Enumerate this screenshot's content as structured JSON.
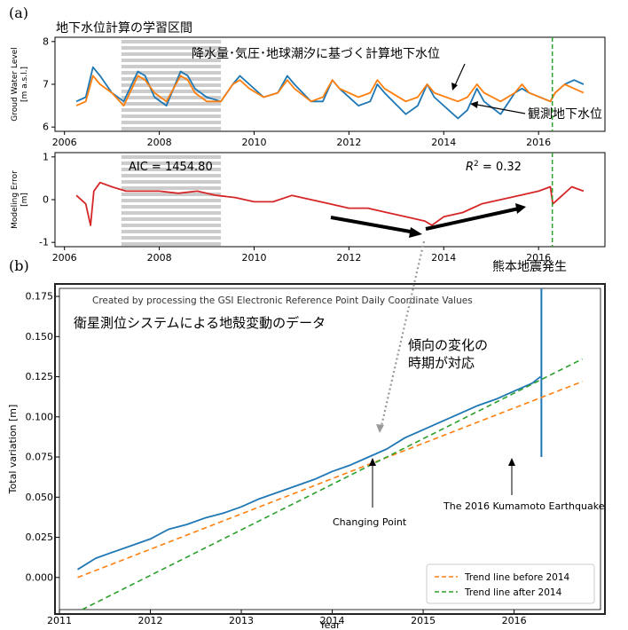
{
  "panel_labels": {
    "a": "(a)",
    "b": "(b)"
  },
  "annotations": {
    "learning_period": "地下水位計算の学習区間",
    "computed_level": "降水量･気圧･地球潮汐に基づく計算地下水位",
    "observed_level": "観測地下水位",
    "earthquake": "熊本地震発生",
    "gnss_data": "衛星測位システムによる地殻変動のデータ",
    "trend_change_1": "傾向の変化の",
    "trend_change_2": "時期が対応",
    "credit": "Created by processing the GSI Electronic Reference Point Daily Coordinate Values",
    "changing_point": "Changing Point",
    "kumamoto": "The 2016 Kumamoto Earthquake",
    "aic": "AIC = 1454.80",
    "r2_prefix": "R",
    "r2_sup": "2",
    "r2_suffix": " = 0.32"
  },
  "colors": {
    "observed": "#1f77b4",
    "computed": "#ff7f0e",
    "error": "#d62728",
    "trend_before": "#ff7f0e",
    "trend_after": "#2ca02c",
    "earthquake_line": "#2ca02c",
    "training_band": "#cccccc"
  },
  "chart_data": [
    {
      "id": "groundwater",
      "type": "line",
      "xlabel": "",
      "ylabel_1": "Groud Water Level",
      "ylabel_2": "[m a.s.l.]",
      "xlim": [
        2005.8,
        2017.4
      ],
      "ylim": [
        5.9,
        8.1
      ],
      "xticks": [
        2006,
        2008,
        2010,
        2012,
        2014,
        2016
      ],
      "yticks": [
        6,
        7,
        8
      ],
      "training_period": [
        2007.2,
        2009.3
      ],
      "earthquake_year": 2016.29,
      "series": [
        {
          "name": "観測地下水位",
          "key": "observed",
          "x": [
            2006.25,
            2006.45,
            2006.6,
            2006.75,
            2007.0,
            2007.25,
            2007.55,
            2007.7,
            2007.9,
            2008.15,
            2008.45,
            2008.6,
            2008.75,
            2009.0,
            2009.3,
            2009.55,
            2009.7,
            2009.9,
            2010.2,
            2010.5,
            2010.7,
            2010.85,
            2011.2,
            2011.45,
            2011.65,
            2011.8,
            2012.2,
            2012.45,
            2012.6,
            2012.75,
            2013.2,
            2013.45,
            2013.65,
            2013.8,
            2014.3,
            2014.5,
            2014.7,
            2014.85,
            2015.2,
            2015.5,
            2015.65,
            2015.8,
            2016.25,
            2016.35,
            2016.55,
            2016.75,
            2016.95
          ],
          "y": [
            6.6,
            6.7,
            7.4,
            7.2,
            6.8,
            6.6,
            7.3,
            7.2,
            6.7,
            6.5,
            7.3,
            7.2,
            6.9,
            6.7,
            6.6,
            7.0,
            7.2,
            7.0,
            6.7,
            6.8,
            7.2,
            7.0,
            6.6,
            6.6,
            7.1,
            6.9,
            6.5,
            6.6,
            7.0,
            6.8,
            6.3,
            6.5,
            7.0,
            6.7,
            6.2,
            6.4,
            6.9,
            6.6,
            6.3,
            6.8,
            6.9,
            6.8,
            6.6,
            6.8,
            7.0,
            7.1,
            7.0
          ]
        },
        {
          "name": "降水量･気圧･地球潮汐に基づく計算地下水位",
          "key": "computed",
          "x": [
            2006.25,
            2006.45,
            2006.6,
            2006.75,
            2007.0,
            2007.25,
            2007.55,
            2007.7,
            2007.9,
            2008.15,
            2008.45,
            2008.6,
            2008.75,
            2009.0,
            2009.3,
            2009.55,
            2009.7,
            2009.9,
            2010.2,
            2010.5,
            2010.7,
            2010.85,
            2011.2,
            2011.45,
            2011.65,
            2011.8,
            2012.2,
            2012.45,
            2012.6,
            2012.75,
            2013.2,
            2013.45,
            2013.65,
            2013.8,
            2014.3,
            2014.5,
            2014.7,
            2014.85,
            2015.2,
            2015.5,
            2015.65,
            2015.8,
            2016.25,
            2016.35,
            2016.55,
            2016.75,
            2016.95
          ],
          "y": [
            6.5,
            6.6,
            7.2,
            7.0,
            6.8,
            6.5,
            7.2,
            7.1,
            6.8,
            6.6,
            7.2,
            7.1,
            6.8,
            6.6,
            6.6,
            7.0,
            7.1,
            6.9,
            6.7,
            6.8,
            7.1,
            6.9,
            6.6,
            6.7,
            7.1,
            6.9,
            6.7,
            6.8,
            7.1,
            6.9,
            6.6,
            6.7,
            7.0,
            6.8,
            6.6,
            6.7,
            7.0,
            6.8,
            6.6,
            6.8,
            7.0,
            6.8,
            6.6,
            6.8,
            7.0,
            6.9,
            6.8
          ]
        }
      ]
    },
    {
      "id": "modeling_error",
      "type": "line",
      "ylabel_1": "Modeling Error",
      "ylabel_2": "[m]",
      "xlim": [
        2005.8,
        2017.4
      ],
      "ylim": [
        -1.1,
        1.1
      ],
      "xticks": [
        2006,
        2008,
        2010,
        2012,
        2014,
        2016
      ],
      "yticks": [
        -1,
        0,
        1
      ],
      "training_period": [
        2007.2,
        2009.3
      ],
      "earthquake_year": 2016.29,
      "series": [
        {
          "name": "Modeling Error",
          "key": "error",
          "x": [
            2006.25,
            2006.45,
            2006.55,
            2006.62,
            2006.75,
            2007.0,
            2007.3,
            2007.6,
            2008.0,
            2008.4,
            2008.8,
            2009.2,
            2009.6,
            2010.0,
            2010.4,
            2010.8,
            2011.2,
            2011.6,
            2012.0,
            2012.4,
            2012.8,
            2013.2,
            2013.6,
            2013.75,
            2014.0,
            2014.4,
            2014.8,
            2015.2,
            2015.6,
            2016.0,
            2016.25,
            2016.3,
            2016.5,
            2016.7,
            2016.95
          ],
          "y": [
            0.1,
            -0.1,
            -0.6,
            0.2,
            0.4,
            0.3,
            0.2,
            0.2,
            0.2,
            0.15,
            0.2,
            0.1,
            0.05,
            -0.05,
            -0.05,
            0.1,
            0.0,
            -0.1,
            -0.2,
            -0.2,
            -0.3,
            -0.4,
            -0.5,
            -0.6,
            -0.4,
            -0.3,
            -0.1,
            0.0,
            0.1,
            0.2,
            0.3,
            -0.1,
            0.1,
            0.3,
            0.2
          ]
        }
      ]
    },
    {
      "id": "total_variation",
      "type": "line",
      "xlabel": "Year",
      "ylabel": "Total variation [m]",
      "xlim": [
        2011.0,
        2016.95
      ],
      "ylim": [
        -0.02,
        0.18
      ],
      "xticks": [
        2011,
        2012,
        2013,
        2014,
        2015,
        2016
      ],
      "yticks": [
        0.0,
        0.025,
        0.05,
        0.075,
        0.1,
        0.125,
        0.15,
        0.175
      ],
      "ytick_labels": [
        "0.000",
        "0.025",
        "0.050",
        "0.075",
        "0.100",
        "0.125",
        "0.150",
        "0.175"
      ],
      "changing_point": 2014.5,
      "earthquake_year": 2016.3,
      "series": [
        {
          "name": "Total variation",
          "key": "observed",
          "x": [
            2011.2,
            2011.4,
            2011.6,
            2011.8,
            2012.0,
            2012.2,
            2012.4,
            2012.6,
            2012.8,
            2013.0,
            2013.2,
            2013.4,
            2013.6,
            2013.8,
            2014.0,
            2014.2,
            2014.4,
            2014.6,
            2014.8,
            2015.0,
            2015.2,
            2015.4,
            2015.6,
            2015.8,
            2016.0,
            2016.2,
            2016.29
          ],
          "y": [
            0.005,
            0.012,
            0.016,
            0.02,
            0.024,
            0.03,
            0.033,
            0.037,
            0.04,
            0.044,
            0.049,
            0.053,
            0.057,
            0.061,
            0.066,
            0.07,
            0.075,
            0.08,
            0.087,
            0.092,
            0.097,
            0.102,
            0.107,
            0.111,
            0.116,
            0.121,
            0.125
          ],
          "earthquake_offset": [
            0.075,
            0.18
          ]
        },
        {
          "name": "Trend line before 2014",
          "key": "trend_before",
          "x": [
            2011.2,
            2016.75
          ],
          "y": [
            0.0,
            0.122
          ]
        },
        {
          "name": "Trend line after 2014",
          "key": "trend_after",
          "x": [
            2011.25,
            2016.75
          ],
          "y": [
            -0.02,
            0.136
          ]
        }
      ],
      "legend": [
        "Trend line before 2014",
        "Trend line after 2014"
      ],
      "legend_position": "bottom-right"
    }
  ]
}
